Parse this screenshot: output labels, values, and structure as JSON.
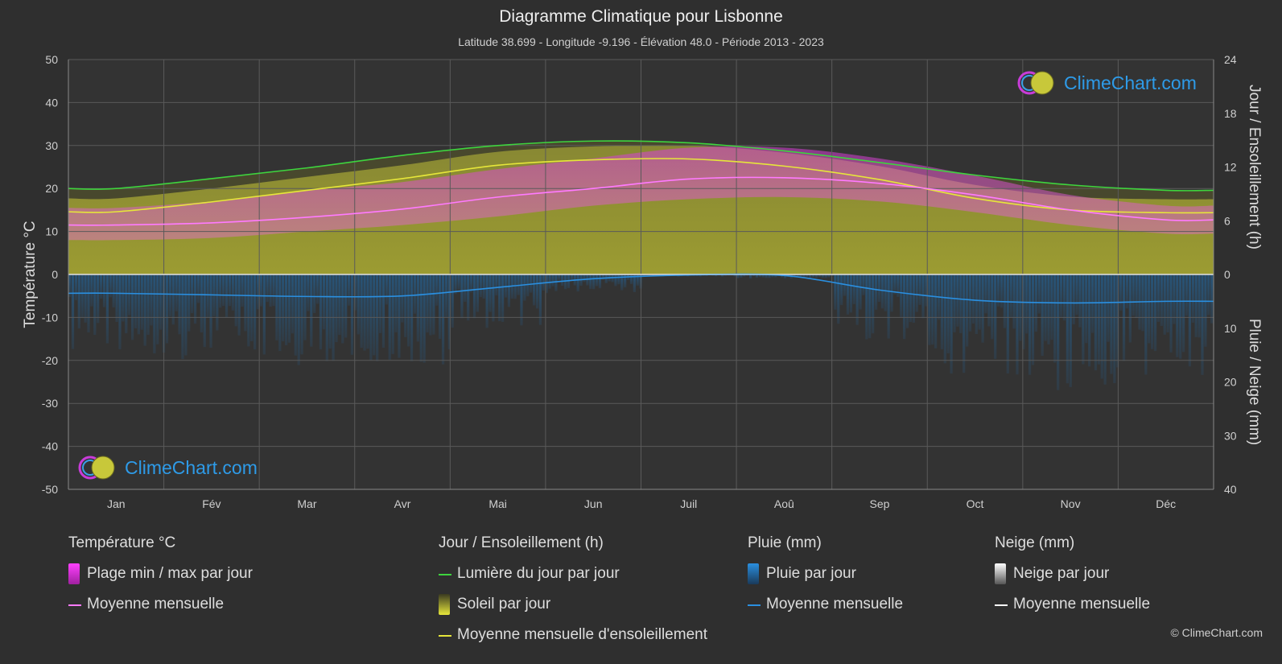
{
  "title": "Diagramme Climatique pour Lisbonne",
  "subtitle": "Latitude 38.699 - Longitude -9.196 - Élévation 48.0 - Période 2013 - 2023",
  "brand": "ClimeChart.com",
  "copyright": "© ClimeChart.com",
  "colors": {
    "background": "#2f2f2f",
    "daylight": "#3ed43e",
    "sunshine_avg": "#e6e63a",
    "sunshine_fill": "#a6a630",
    "temp_range": "#e040e0",
    "temp_avg": "#ff7aff",
    "rain": "#2a8fe0",
    "snow": "#ffffff",
    "brand": "#2e9be8"
  },
  "legend": {
    "temperature": {
      "title": "Température °C",
      "range": "Plage min / max par jour",
      "avg": "Moyenne mensuelle"
    },
    "sun": {
      "title": "Jour / Ensoleillement (h)",
      "daylight": "Lumière du jour par jour",
      "sunshine": "Soleil par jour",
      "sun_avg": "Moyenne mensuelle d'ensoleillement"
    },
    "rain": {
      "title": "Pluie (mm)",
      "per_day": "Pluie par jour",
      "avg": "Moyenne mensuelle"
    },
    "snow": {
      "title": "Neige (mm)",
      "per_day": "Neige par jour",
      "avg": "Moyenne mensuelle"
    }
  },
  "chart_data": {
    "type": "line",
    "categories": [
      "Jan",
      "Fév",
      "Mar",
      "Avr",
      "Mai",
      "Jun",
      "Juil",
      "Aoû",
      "Sep",
      "Oct",
      "Nov",
      "Déc"
    ],
    "y_left": {
      "label": "Température °C",
      "range": [
        -50,
        50
      ],
      "ticks": [
        50,
        40,
        30,
        20,
        10,
        0,
        -10,
        -20,
        -30,
        -40,
        -50
      ]
    },
    "y_right_top": {
      "label": "Jour / Ensoleillement (h)",
      "range": [
        0,
        24
      ],
      "ticks": [
        24,
        18,
        12,
        6,
        0
      ]
    },
    "y_right_bottom": {
      "label": "Pluie / Neige (mm)",
      "range": [
        0,
        40
      ],
      "ticks": [
        10,
        20,
        30,
        40
      ]
    },
    "grid": true,
    "series": [
      {
        "name": "Lumière du jour par jour",
        "unit": "h",
        "values": [
          9.6,
          10.7,
          11.9,
          13.3,
          14.4,
          14.9,
          14.7,
          13.8,
          12.5,
          11.1,
          10.0,
          9.4
        ]
      },
      {
        "name": "Moyenne mensuelle d'ensoleillement",
        "unit": "h",
        "values": [
          7.0,
          8.1,
          9.4,
          10.7,
          12.2,
          12.8,
          12.9,
          12.1,
          10.6,
          8.5,
          7.2,
          6.9
        ]
      },
      {
        "name": "Moyenne mensuelle",
        "unit": "°C",
        "values": [
          11.5,
          12.0,
          13.3,
          15.2,
          18.0,
          20.0,
          22.2,
          22.5,
          21.2,
          18.5,
          15.0,
          12.7
        ]
      },
      {
        "name": "Plage min / max par jour (max)",
        "unit": "°C",
        "values": [
          15.5,
          17.0,
          19.5,
          21.5,
          24.5,
          27.0,
          29.5,
          29.5,
          27.0,
          23.0,
          18.5,
          16.0
        ]
      },
      {
        "name": "Plage min / max par jour (min)",
        "unit": "°C",
        "values": [
          8.0,
          8.5,
          10.0,
          11.5,
          13.5,
          16.0,
          17.5,
          18.0,
          17.0,
          14.5,
          11.5,
          9.5
        ]
      },
      {
        "name": "Pluie — Moyenne mensuelle",
        "unit": "mm",
        "values": [
          3.5,
          3.8,
          4.1,
          4.0,
          2.4,
          0.8,
          0.1,
          0.2,
          2.9,
          4.8,
          5.3,
          5.0
        ]
      },
      {
        "name": "Neige — Moyenne mensuelle",
        "unit": "mm",
        "values": [
          0,
          0,
          0,
          0,
          0,
          0,
          0,
          0,
          0,
          0,
          0,
          0
        ]
      }
    ]
  }
}
